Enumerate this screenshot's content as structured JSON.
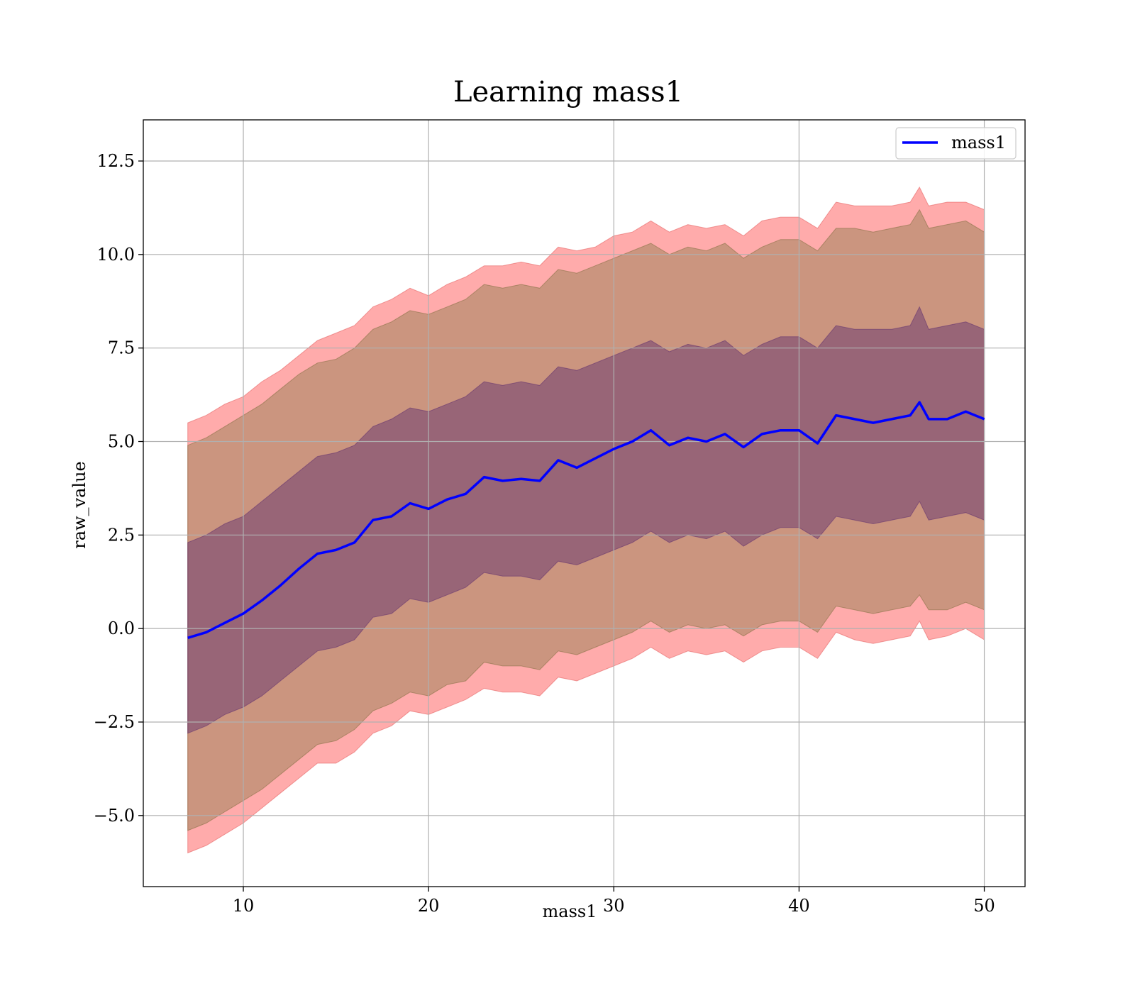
{
  "chart_data": {
    "type": "area",
    "title": "Learning mass1",
    "xlabel": "mass1",
    "ylabel": "raw_value",
    "xlim": [
      4.6,
      52.2
    ],
    "ylim": [
      -6.9,
      13.6
    ],
    "xticks": [
      10,
      20,
      30,
      40,
      50
    ],
    "xtick_labels": [
      "10",
      "20",
      "30",
      "40",
      "50"
    ],
    "yticks": [
      -5.0,
      -2.5,
      0.0,
      2.5,
      5.0,
      7.5,
      10.0,
      12.5
    ],
    "ytick_labels": [
      "−5.0",
      "−2.5",
      "0.0",
      "2.5",
      "5.0",
      "7.5",
      "10.0",
      "12.5"
    ],
    "grid": true,
    "legend": {
      "position": "top-right",
      "entries": [
        "mass1"
      ]
    },
    "colors": {
      "mean_line": "#0000ff",
      "band_outer": "#ff6666",
      "band_middle": "#8b7a4a",
      "band_inner": "#5a2a6e"
    },
    "series": [
      {
        "name": "mass1",
        "role": "mean",
        "x": [
          7,
          8,
          9,
          10,
          11,
          12,
          13,
          14,
          15,
          16,
          17,
          18,
          19,
          20,
          21,
          22,
          23,
          24,
          25,
          26,
          27,
          28,
          29,
          30,
          31,
          32,
          33,
          34,
          35,
          36,
          37,
          38,
          39,
          40,
          41,
          42,
          43,
          44,
          45,
          46,
          46.5,
          47,
          48,
          49,
          50
        ],
        "y": [
          -0.25,
          -0.1,
          0.15,
          0.4,
          0.75,
          1.15,
          1.6,
          2.0,
          2.1,
          2.3,
          2.9,
          3.0,
          3.35,
          3.2,
          3.45,
          3.6,
          4.05,
          3.95,
          4.0,
          3.95,
          4.5,
          4.3,
          4.55,
          4.8,
          5.0,
          5.3,
          4.9,
          5.1,
          5.0,
          5.2,
          4.85,
          5.2,
          5.3,
          5.3,
          4.95,
          5.7,
          5.6,
          5.5,
          5.6,
          5.7,
          6.05,
          5.6,
          5.6,
          5.8,
          5.6
        ]
      }
    ],
    "bands": [
      {
        "role": "outer",
        "x": [
          7,
          8,
          9,
          10,
          11,
          12,
          13,
          14,
          15,
          16,
          17,
          18,
          19,
          20,
          21,
          22,
          23,
          24,
          25,
          26,
          27,
          28,
          29,
          30,
          31,
          32,
          33,
          34,
          35,
          36,
          37,
          38,
          39,
          40,
          41,
          42,
          43,
          44,
          45,
          46,
          46.5,
          47,
          48,
          49,
          50
        ],
        "upper": [
          5.5,
          5.7,
          6.0,
          6.2,
          6.6,
          6.9,
          7.3,
          7.7,
          7.9,
          8.1,
          8.6,
          8.8,
          9.1,
          8.9,
          9.2,
          9.4,
          9.7,
          9.7,
          9.8,
          9.7,
          10.2,
          10.1,
          10.2,
          10.5,
          10.6,
          10.9,
          10.6,
          10.8,
          10.7,
          10.8,
          10.5,
          10.9,
          11.0,
          11.0,
          10.7,
          11.4,
          11.3,
          11.3,
          11.3,
          11.4,
          11.8,
          11.3,
          11.4,
          11.4,
          11.2
        ],
        "lower": [
          -6.0,
          -5.8,
          -5.5,
          -5.2,
          -4.8,
          -4.4,
          -4.0,
          -3.6,
          -3.6,
          -3.3,
          -2.8,
          -2.6,
          -2.2,
          -2.3,
          -2.1,
          -1.9,
          -1.6,
          -1.7,
          -1.7,
          -1.8,
          -1.3,
          -1.4,
          -1.2,
          -1.0,
          -0.8,
          -0.5,
          -0.8,
          -0.6,
          -0.7,
          -0.6,
          -0.9,
          -0.6,
          -0.5,
          -0.5,
          -0.8,
          -0.1,
          -0.3,
          -0.4,
          -0.3,
          -0.2,
          0.2,
          -0.3,
          -0.2,
          0.0,
          -0.3
        ]
      },
      {
        "role": "middle",
        "x": [
          7,
          8,
          9,
          10,
          11,
          12,
          13,
          14,
          15,
          16,
          17,
          18,
          19,
          20,
          21,
          22,
          23,
          24,
          25,
          26,
          27,
          28,
          29,
          30,
          31,
          32,
          33,
          34,
          35,
          36,
          37,
          38,
          39,
          40,
          41,
          42,
          43,
          44,
          45,
          46,
          46.5,
          47,
          48,
          49,
          50
        ],
        "upper": [
          4.9,
          5.1,
          5.4,
          5.7,
          6.0,
          6.4,
          6.8,
          7.1,
          7.2,
          7.5,
          8.0,
          8.2,
          8.5,
          8.4,
          8.6,
          8.8,
          9.2,
          9.1,
          9.2,
          9.1,
          9.6,
          9.5,
          9.7,
          9.9,
          10.1,
          10.3,
          10.0,
          10.2,
          10.1,
          10.3,
          9.9,
          10.2,
          10.4,
          10.4,
          10.1,
          10.7,
          10.7,
          10.6,
          10.7,
          10.8,
          11.2,
          10.7,
          10.8,
          10.9,
          10.6
        ],
        "lower": [
          -5.4,
          -5.2,
          -4.9,
          -4.6,
          -4.3,
          -3.9,
          -3.5,
          -3.1,
          -3.0,
          -2.7,
          -2.2,
          -2.0,
          -1.7,
          -1.8,
          -1.5,
          -1.4,
          -0.9,
          -1.0,
          -1.0,
          -1.1,
          -0.6,
          -0.7,
          -0.5,
          -0.3,
          -0.1,
          0.2,
          -0.1,
          0.1,
          0.0,
          0.1,
          -0.2,
          0.1,
          0.2,
          0.2,
          -0.1,
          0.6,
          0.5,
          0.4,
          0.5,
          0.6,
          0.9,
          0.5,
          0.5,
          0.7,
          0.5
        ]
      },
      {
        "role": "inner",
        "x": [
          7,
          8,
          9,
          10,
          11,
          12,
          13,
          14,
          15,
          16,
          17,
          18,
          19,
          20,
          21,
          22,
          23,
          24,
          25,
          26,
          27,
          28,
          29,
          30,
          31,
          32,
          33,
          34,
          35,
          36,
          37,
          38,
          39,
          40,
          41,
          42,
          43,
          44,
          45,
          46,
          46.5,
          47,
          48,
          49,
          50
        ],
        "upper": [
          2.3,
          2.5,
          2.8,
          3.0,
          3.4,
          3.8,
          4.2,
          4.6,
          4.7,
          4.9,
          5.4,
          5.6,
          5.9,
          5.8,
          6.0,
          6.2,
          6.6,
          6.5,
          6.6,
          6.5,
          7.0,
          6.9,
          7.1,
          7.3,
          7.5,
          7.7,
          7.4,
          7.6,
          7.5,
          7.7,
          7.3,
          7.6,
          7.8,
          7.8,
          7.5,
          8.1,
          8.0,
          8.0,
          8.0,
          8.1,
          8.6,
          8.0,
          8.1,
          8.2,
          8.0
        ],
        "lower": [
          -2.8,
          -2.6,
          -2.3,
          -2.1,
          -1.8,
          -1.4,
          -1.0,
          -0.6,
          -0.5,
          -0.3,
          0.3,
          0.4,
          0.8,
          0.7,
          0.9,
          1.1,
          1.5,
          1.4,
          1.4,
          1.3,
          1.8,
          1.7,
          1.9,
          2.1,
          2.3,
          2.6,
          2.3,
          2.5,
          2.4,
          2.6,
          2.2,
          2.5,
          2.7,
          2.7,
          2.4,
          3.0,
          2.9,
          2.8,
          2.9,
          3.0,
          3.4,
          2.9,
          3.0,
          3.1,
          2.9
        ]
      }
    ]
  }
}
